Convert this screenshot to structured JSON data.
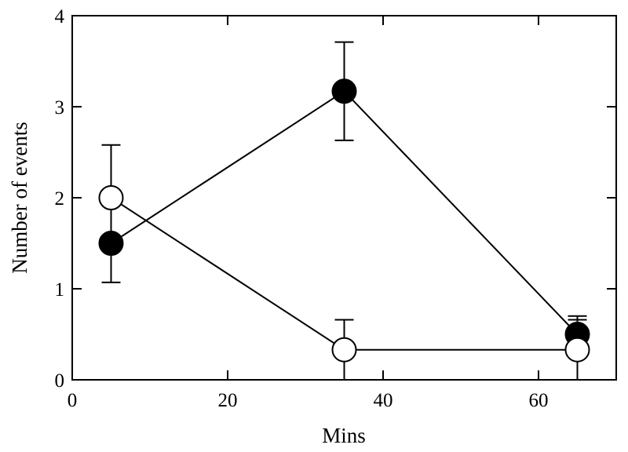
{
  "chart_data": {
    "type": "line",
    "title": "",
    "xlabel": "Mins",
    "ylabel": "Number of events",
    "xlim": [
      0,
      70
    ],
    "ylim": [
      0,
      4
    ],
    "xticks": [
      0,
      20,
      40,
      60
    ],
    "yticks": [
      0,
      1,
      2,
      3,
      4
    ],
    "grid": false,
    "legend": "none",
    "series": [
      {
        "marker": "filled-circle",
        "color": "#000000",
        "x": [
          5,
          35,
          65
        ],
        "y": [
          1.5,
          3.17,
          0.5
        ],
        "error": [
          0.43,
          0.54,
          0.2
        ]
      },
      {
        "marker": "open-circle",
        "color": "#000000",
        "x": [
          5,
          35,
          65
        ],
        "y": [
          2.0,
          0.33,
          0.33
        ],
        "error": [
          0.58,
          0.33,
          0.33
        ]
      }
    ]
  }
}
